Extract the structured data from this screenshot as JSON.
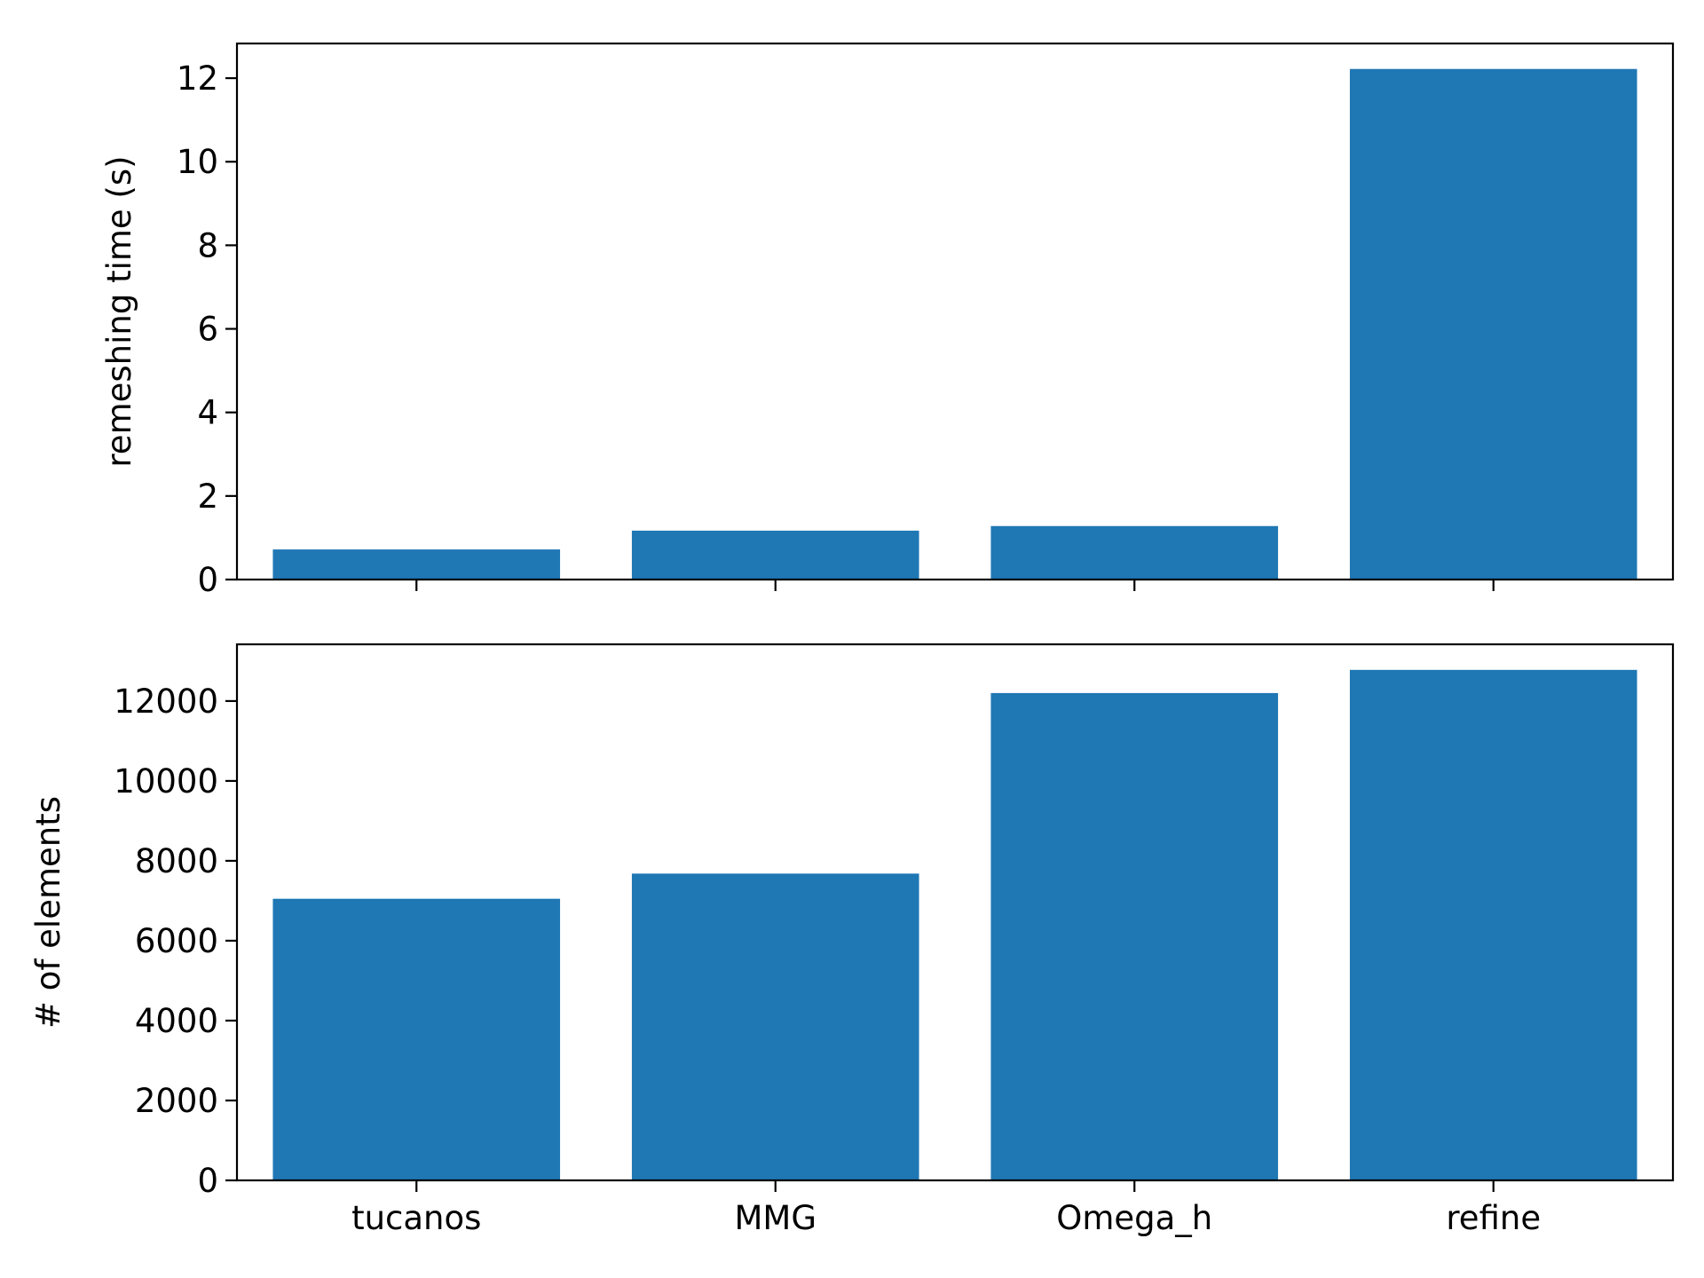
{
  "chart_data": [
    {
      "type": "bar",
      "categories": [
        "tucanos",
        "MMG",
        "Omega_h",
        "refine"
      ],
      "values": [
        0.72,
        1.17,
        1.28,
        12.22
      ],
      "xlabel": "",
      "ylabel": "remeshing time (s)",
      "ylim": [
        0,
        12.83
      ],
      "yticks": [
        0,
        2,
        4,
        6,
        8,
        10,
        12
      ],
      "ytick_labels": [
        "0",
        "2",
        "4",
        "6",
        "8",
        "10",
        "12"
      ],
      "show_xtick_labels": false,
      "grid": false,
      "color": "#1f77b4"
    },
    {
      "type": "bar",
      "categories": [
        "tucanos",
        "MMG",
        "Omega_h",
        "refine"
      ],
      "values": [
        7050,
        7680,
        12200,
        12780
      ],
      "xlabel": "",
      "ylabel": "# of elements",
      "ylim": [
        0,
        13420
      ],
      "yticks": [
        0,
        2000,
        4000,
        6000,
        8000,
        10000,
        12000
      ],
      "ytick_labels": [
        "0",
        "2000",
        "4000",
        "6000",
        "8000",
        "10000",
        "12000"
      ],
      "show_xtick_labels": true,
      "grid": false,
      "color": "#1f77b4"
    }
  ]
}
